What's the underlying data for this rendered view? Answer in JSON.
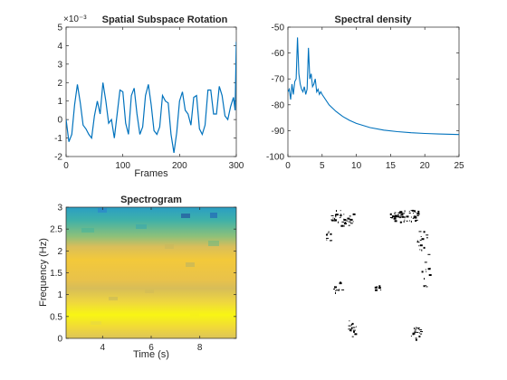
{
  "chart_data": [
    {
      "type": "line",
      "title": "Spatial Subspace Rotation",
      "xlabel": "Frames",
      "ylabel": "",
      "y_exponent_label": "×10⁻³",
      "xlim": [
        0,
        300
      ],
      "ylim": [
        -2,
        5
      ],
      "xticks": [
        0,
        100,
        200,
        300
      ],
      "yticks": [
        -2,
        -1,
        0,
        1,
        2,
        3,
        4,
        5
      ],
      "color": "#0072bd",
      "series": [
        {
          "x": [
            0,
            5,
            10,
            15,
            20,
            25,
            30,
            35,
            40,
            45,
            50,
            55,
            60,
            65,
            70,
            75,
            80,
            85,
            90,
            95,
            100,
            105,
            110,
            115,
            120,
            125,
            130,
            135,
            140,
            145,
            150,
            155,
            160,
            165,
            170,
            175,
            180,
            185,
            190,
            195,
            200,
            205,
            210,
            215,
            220,
            225,
            230,
            235,
            240,
            245,
            250,
            255,
            260,
            265,
            270,
            275,
            280,
            285,
            290,
            295,
            298,
            300
          ],
          "y": [
            0.0,
            -1.2,
            -0.8,
            0.8,
            1.9,
            0.9,
            -0.3,
            -0.5,
            -0.8,
            -1.0,
            0.2,
            1.0,
            0.3,
            2.0,
            1.0,
            -0.2,
            0.0,
            -1.0,
            0.3,
            1.6,
            1.5,
            -0.2,
            -0.8,
            1.3,
            1.7,
            0.3,
            -0.8,
            -0.4,
            1.3,
            1.9,
            0.8,
            -0.6,
            -0.8,
            -0.4,
            1.3,
            1.0,
            0.9,
            -0.8,
            -1.8,
            -0.7,
            1.0,
            1.5,
            0.5,
            0.3,
            -0.3,
            1.2,
            1.3,
            -0.5,
            -0.8,
            -0.3,
            1.6,
            1.6,
            0.3,
            0.3,
            1.8,
            1.3,
            0.2,
            0.0,
            0.7,
            1.2,
            0.5,
            4.2
          ]
        }
      ]
    },
    {
      "type": "line",
      "title": "Spectral density",
      "xlabel": "",
      "ylabel": "",
      "xlim": [
        0,
        25
      ],
      "ylim": [
        -100,
        -50
      ],
      "xticks": [
        0,
        5,
        10,
        15,
        20,
        25
      ],
      "yticks": [
        -100,
        -90,
        -80,
        -70,
        -60,
        -50
      ],
      "color": "#0072bd",
      "series": [
        {
          "x": [
            0,
            0.2,
            0.4,
            0.6,
            0.8,
            1.0,
            1.2,
            1.4,
            1.6,
            1.8,
            2.0,
            2.2,
            2.4,
            2.6,
            2.8,
            3.0,
            3.2,
            3.4,
            3.6,
            3.8,
            4.0,
            4.2,
            4.4,
            4.6,
            4.8,
            5.0,
            6.0,
            7.0,
            8.0,
            9.0,
            10.0,
            12.0,
            14.0,
            16.0,
            18.0,
            20.0,
            22.0,
            25.0
          ],
          "y": [
            -75,
            -74,
            -78,
            -72,
            -76,
            -71,
            -70,
            -54,
            -68,
            -72,
            -74,
            -75,
            -73,
            -76,
            -74,
            -58,
            -70,
            -68,
            -73,
            -72,
            -70,
            -75,
            -74,
            -76,
            -75,
            -76,
            -80,
            -82.5,
            -84.5,
            -86,
            -87.2,
            -88.8,
            -89.8,
            -90.4,
            -90.8,
            -91.1,
            -91.3,
            -91.5
          ]
        }
      ]
    },
    {
      "type": "heatmap",
      "title": "Spectrogram",
      "xlabel": "Time (s)",
      "ylabel": "Frequency (Hz)",
      "xlim": [
        2.5,
        9.5
      ],
      "ylim": [
        0,
        3
      ],
      "xticks": [
        4,
        6,
        8
      ],
      "yticks": [
        0,
        0.5,
        1,
        1.5,
        2,
        2.5,
        3
      ]
    }
  ],
  "panel4": {
    "type": "binary-mask-image",
    "icon": "face-mask-image"
  }
}
